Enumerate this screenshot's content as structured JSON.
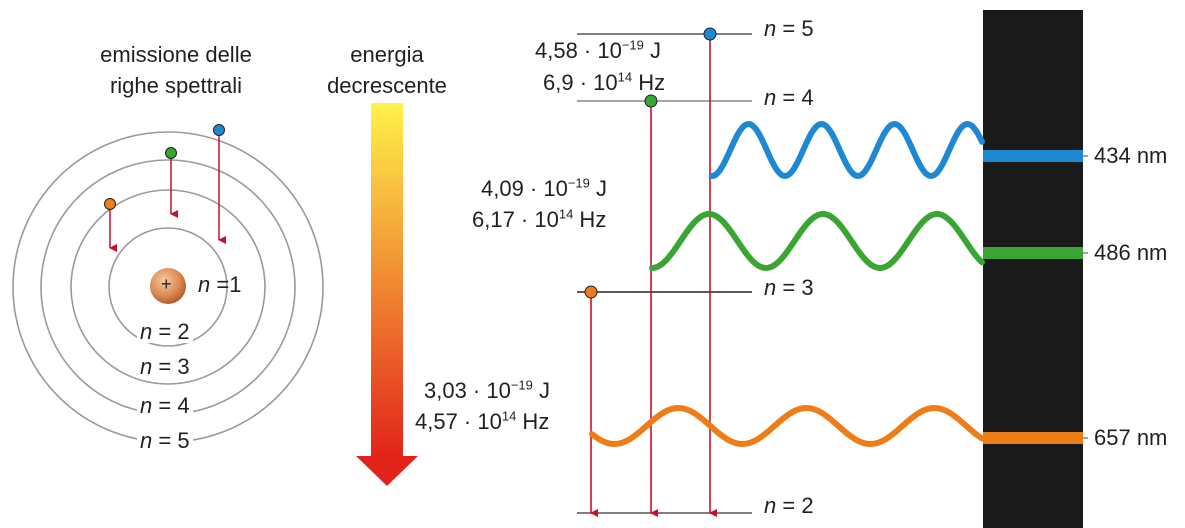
{
  "atom_model": {
    "caption_line1": "emissione delle",
    "caption_line2": "righe spettrali",
    "nucleus_symbol": "+",
    "orbit_labels": [
      {
        "n": "n",
        "eq": "=1"
      },
      {
        "n": "n",
        "eq": "= 2"
      },
      {
        "n": "n",
        "eq": "= 3"
      },
      {
        "n": "n",
        "eq": "= 4"
      },
      {
        "n": "n",
        "eq": "= 5"
      }
    ]
  },
  "energy_arrow": {
    "label_line1": "energia",
    "label_line2": "decrescente",
    "gradient_top": "#fff24a",
    "gradient_bottom": "#e2231a"
  },
  "levels": [
    {
      "n": "n",
      "eq": "= 5"
    },
    {
      "n": "n",
      "eq": "= 4"
    },
    {
      "n": "n",
      "eq": "= 3"
    },
    {
      "n": "n",
      "eq": "= 2"
    }
  ],
  "transitions": [
    {
      "color": "#1e88d2",
      "energy_mant": "4,58 · 10",
      "energy_exp": "−19",
      "energy_unit": " J",
      "freq_mant": "6,9 · 10",
      "freq_exp": "14",
      "freq_unit": " Hz",
      "wavelength": "434 nm"
    },
    {
      "color": "#3aa533",
      "energy_mant": "4,09 · 10",
      "energy_exp": "−19",
      "energy_unit": " J",
      "freq_mant": "6,17 · 10",
      "freq_exp": "14",
      "freq_unit": " Hz",
      "wavelength": "486 nm"
    },
    {
      "color": "#ef7d17",
      "energy_mant": "3,03 · 10",
      "energy_exp": "−19",
      "energy_unit": " J",
      "freq_mant": "4,57 · 10",
      "freq_exp": "14",
      "freq_unit": " Hz",
      "wavelength": "657 nm"
    }
  ],
  "colors": {
    "drop_line": "#c8102e",
    "spectrum_bg": "#1a1a1a",
    "orbit": "#9a9a9a",
    "nucleus": "#d9804a"
  }
}
